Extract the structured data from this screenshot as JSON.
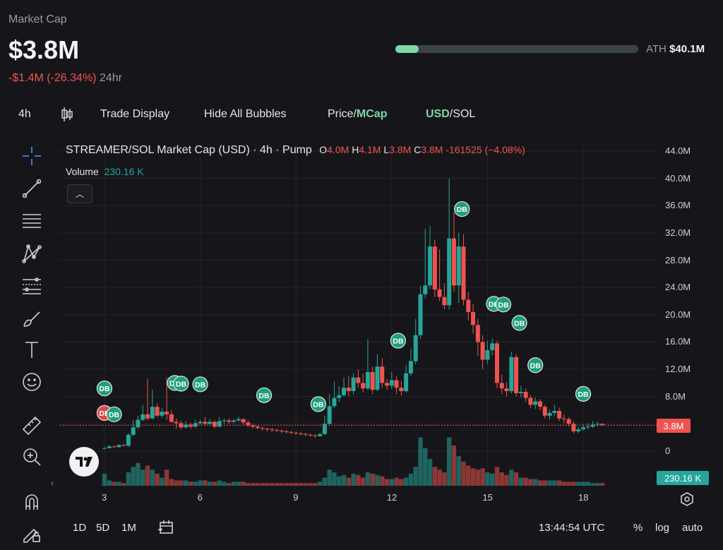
{
  "header": {
    "label": "Market Cap",
    "value": "$3.8M",
    "change": "-$1.4M (-26.34%)",
    "period": "24hr",
    "ath_label": "ATH",
    "ath_value": "$40.1M",
    "ath_progress": 0.095
  },
  "toolbar": {
    "interval": "4h",
    "trade_display": "Trade Display",
    "hide_bubbles": "Hide All Bubbles",
    "price_label": "Price",
    "mcap_label": "MCap",
    "usd_label": "USD",
    "sol_label": "SOL",
    "slash": "/"
  },
  "legend": {
    "title": "STREAMER/SOL Market Cap (USD) · 4h · Pump",
    "o_label": "O",
    "o_value": "4.0M",
    "h_label": "H",
    "h_value": "4.1M",
    "l_label": "L",
    "l_value": "3.8M",
    "c_label": "C",
    "c_value": "3.8M",
    "change": "-161525 (−4.08%)",
    "volume_label": "Volume",
    "volume_value": "230.16 K"
  },
  "bottom": {
    "ranges": [
      "1D",
      "5D",
      "1M"
    ],
    "time": "13:44:54 UTC",
    "percent": "%",
    "log": "log",
    "auto": "auto"
  },
  "colors": {
    "up": "#26a69a",
    "down": "#ef5350",
    "background": "#16161a",
    "accent_green": "#7fd6a7"
  },
  "chart_data": {
    "type": "candlestick",
    "y_ticks": [
      "44.0M",
      "40.0M",
      "36.0M",
      "32.0M",
      "28.0M",
      "24.0M",
      "20.0M",
      "16.0M",
      "12.0M",
      "8.0M",
      "0"
    ],
    "x_ticks": [
      "3",
      "6",
      "9",
      "12",
      "15",
      "18"
    ],
    "ylim": [
      0,
      44000000
    ],
    "last_price_label": "3.8M",
    "volume_badge": "230.16 K",
    "marker_label": "DB",
    "markers": [
      {
        "day": 3.0,
        "y": 9.2,
        "color": "up"
      },
      {
        "day": 3.0,
        "y": 5.6,
        "color": "down"
      },
      {
        "day": 3.3,
        "y": 5.4,
        "color": "up"
      },
      {
        "day": 5.2,
        "y": 10.0,
        "color": "up"
      },
      {
        "day": 5.4,
        "y": 9.9,
        "color": "up"
      },
      {
        "day": 6.0,
        "y": 9.8,
        "color": "up"
      },
      {
        "day": 8.0,
        "y": 8.2,
        "color": "up"
      },
      {
        "day": 9.7,
        "y": 6.9,
        "color": "up"
      },
      {
        "day": 12.2,
        "y": 16.2,
        "color": "up"
      },
      {
        "day": 14.2,
        "y": 35.5,
        "color": "up"
      },
      {
        "day": 15.2,
        "y": 21.6,
        "color": "up"
      },
      {
        "day": 15.5,
        "y": 21.5,
        "color": "up"
      },
      {
        "day": 16.0,
        "y": 18.8,
        "color": "up"
      },
      {
        "day": 16.5,
        "y": 12.6,
        "color": "up"
      },
      {
        "day": 18.0,
        "y": 8.4,
        "color": "up"
      }
    ],
    "candles": [
      [
        3.0,
        0.4,
        0.45,
        0.6,
        0.3,
        9
      ],
      [
        3.15,
        0.45,
        0.7,
        0.9,
        0.4,
        4
      ],
      [
        3.3,
        0.7,
        0.6,
        0.8,
        0.5,
        3
      ],
      [
        3.45,
        0.6,
        0.9,
        1.0,
        0.5,
        3
      ],
      [
        3.6,
        0.9,
        0.8,
        1.1,
        0.7,
        2
      ],
      [
        3.75,
        0.8,
        2.4,
        2.6,
        0.6,
        10
      ],
      [
        3.9,
        2.4,
        3.5,
        4.6,
        2.2,
        14
      ],
      [
        4.05,
        3.5,
        4.6,
        5.2,
        3.3,
        17
      ],
      [
        4.2,
        4.6,
        5.4,
        6.8,
        4.4,
        12
      ],
      [
        4.35,
        5.4,
        4.8,
        10.6,
        4.5,
        15
      ],
      [
        4.5,
        4.8,
        6.5,
        9.0,
        4.7,
        12
      ],
      [
        4.65,
        6.5,
        5.2,
        7.0,
        5.0,
        9
      ],
      [
        4.8,
        5.2,
        5.8,
        6.3,
        4.9,
        6
      ],
      [
        4.95,
        5.8,
        5.4,
        10.8,
        4.6,
        12
      ],
      [
        5.1,
        5.4,
        4.3,
        6.0,
        4.2,
        5
      ],
      [
        5.25,
        4.3,
        4.1,
        4.8,
        3.3,
        4
      ],
      [
        5.4,
        4.1,
        3.5,
        4.5,
        3.2,
        4
      ],
      [
        5.55,
        3.5,
        3.9,
        4.4,
        3.3,
        4
      ],
      [
        5.7,
        3.9,
        3.6,
        4.2,
        3.3,
        3
      ],
      [
        5.85,
        3.6,
        4.1,
        4.6,
        3.4,
        3
      ],
      [
        6.0,
        4.1,
        4.3,
        4.6,
        3.9,
        4
      ],
      [
        6.15,
        4.3,
        4.0,
        5.0,
        3.8,
        4
      ],
      [
        6.3,
        4.0,
        4.3,
        4.7,
        3.9,
        3
      ],
      [
        6.45,
        4.3,
        3.6,
        4.5,
        3.4,
        3
      ],
      [
        6.6,
        3.6,
        4.4,
        5.0,
        3.5,
        4
      ],
      [
        6.75,
        4.4,
        4.5,
        4.8,
        4.0,
        3
      ],
      [
        6.9,
        4.5,
        4.3,
        4.8,
        4.0,
        2
      ],
      [
        7.05,
        4.3,
        4.5,
        4.7,
        4.1,
        3
      ],
      [
        7.2,
        4.5,
        4.7,
        5.0,
        4.3,
        3
      ],
      [
        7.35,
        4.7,
        4.2,
        4.8,
        3.9,
        3
      ],
      [
        7.5,
        4.2,
        3.8,
        4.5,
        3.5,
        2
      ],
      [
        7.65,
        3.8,
        3.6,
        4.0,
        3.3,
        2
      ],
      [
        7.8,
        3.6,
        3.4,
        3.8,
        3.2,
        2
      ],
      [
        7.95,
        3.4,
        3.3,
        3.6,
        3.0,
        2
      ],
      [
        8.1,
        3.3,
        3.2,
        3.4,
        2.9,
        2
      ],
      [
        8.25,
        3.2,
        3.1,
        3.4,
        2.8,
        2
      ],
      [
        8.4,
        3.1,
        3.0,
        3.3,
        2.8,
        2
      ],
      [
        8.55,
        3.0,
        2.9,
        3.2,
        2.7,
        2
      ],
      [
        8.7,
        2.9,
        2.8,
        3.1,
        2.6,
        2
      ],
      [
        8.85,
        2.8,
        2.7,
        3.0,
        2.5,
        2
      ],
      [
        9.0,
        2.7,
        2.6,
        2.9,
        2.4,
        2
      ],
      [
        9.15,
        2.6,
        2.5,
        2.8,
        2.3,
        2
      ],
      [
        9.3,
        2.5,
        2.4,
        2.7,
        2.2,
        2
      ],
      [
        9.45,
        2.4,
        2.3,
        2.6,
        2.1,
        2
      ],
      [
        9.6,
        2.3,
        2.2,
        2.5,
        2.0,
        2
      ],
      [
        9.75,
        2.2,
        2.5,
        2.7,
        2.1,
        3
      ],
      [
        9.9,
        2.5,
        4.0,
        5.2,
        2.4,
        6
      ],
      [
        10.05,
        4.0,
        6.6,
        8.4,
        3.9,
        12
      ],
      [
        10.2,
        6.6,
        7.8,
        10.2,
        6.3,
        10
      ],
      [
        10.35,
        7.8,
        8.2,
        9.5,
        7.2,
        7
      ],
      [
        10.5,
        8.2,
        9.3,
        10.8,
        8.0,
        8
      ],
      [
        10.65,
        9.3,
        8.8,
        11.0,
        8.0,
        6
      ],
      [
        10.8,
        8.8,
        10.8,
        11.4,
        8.3,
        9
      ],
      [
        10.95,
        10.8,
        10.0,
        12.0,
        9.3,
        8
      ],
      [
        11.1,
        10.0,
        9.2,
        11.4,
        8.6,
        6
      ],
      [
        11.25,
        9.2,
        11.6,
        16.4,
        8.9,
        10
      ],
      [
        11.4,
        11.6,
        9.0,
        12.4,
        8.4,
        9
      ],
      [
        11.55,
        9.0,
        12.4,
        14.2,
        8.8,
        8
      ],
      [
        11.7,
        12.4,
        10.0,
        13.6,
        9.3,
        7
      ],
      [
        11.85,
        10.0,
        9.6,
        10.6,
        9.0,
        5
      ],
      [
        12.0,
        9.6,
        10.4,
        11.6,
        9.1,
        5
      ],
      [
        12.15,
        10.4,
        9.3,
        11.0,
        8.4,
        6
      ],
      [
        12.3,
        9.3,
        8.8,
        10.3,
        8.2,
        5
      ],
      [
        12.45,
        8.8,
        11.4,
        12.6,
        8.6,
        6
      ],
      [
        12.6,
        11.4,
        13.2,
        15.0,
        11.0,
        9
      ],
      [
        12.75,
        13.2,
        17.0,
        19.4,
        12.8,
        14
      ],
      [
        12.9,
        17.0,
        23.0,
        24.2,
        16.5,
        36
      ],
      [
        13.05,
        23.0,
        24.3,
        32.6,
        22.4,
        28
      ],
      [
        13.2,
        24.3,
        30.0,
        33.0,
        23.8,
        20
      ],
      [
        13.35,
        30.0,
        23.7,
        31.0,
        22.6,
        14
      ],
      [
        13.5,
        23.7,
        22.6,
        29.6,
        22.0,
        12
      ],
      [
        13.65,
        22.6,
        21.4,
        24.6,
        20.8,
        10
      ],
      [
        13.8,
        21.4,
        31.2,
        40.0,
        20.8,
        36
      ],
      [
        13.95,
        31.2,
        24.3,
        35.0,
        23.4,
        30
      ],
      [
        14.1,
        24.3,
        30.0,
        32.0,
        21.8,
        22
      ],
      [
        14.25,
        30.0,
        22.2,
        31.8,
        21.4,
        18
      ],
      [
        14.4,
        22.2,
        20.4,
        23.3,
        19.2,
        15
      ],
      [
        14.55,
        20.4,
        18.5,
        21.6,
        17.2,
        13
      ],
      [
        14.7,
        18.5,
        16.0,
        19.4,
        14.0,
        12
      ],
      [
        14.85,
        16.0,
        13.4,
        17.0,
        12.0,
        13
      ],
      [
        15.0,
        13.4,
        14.8,
        16.2,
        12.8,
        10
      ],
      [
        15.15,
        14.8,
        15.8,
        16.5,
        14.0,
        9
      ],
      [
        15.3,
        15.8,
        10.0,
        16.2,
        9.2,
        14
      ],
      [
        15.45,
        10.0,
        9.2,
        11.2,
        8.4,
        10
      ],
      [
        15.6,
        9.2,
        8.8,
        10.1,
        8.0,
        8
      ],
      [
        15.75,
        8.8,
        13.8,
        14.6,
        8.4,
        12
      ],
      [
        15.9,
        13.8,
        8.5,
        14.2,
        8.0,
        10
      ],
      [
        16.05,
        8.5,
        8.7,
        9.6,
        7.9,
        6
      ],
      [
        16.2,
        8.7,
        7.8,
        9.2,
        7.2,
        6
      ],
      [
        16.35,
        7.8,
        6.8,
        8.2,
        6.3,
        5
      ],
      [
        16.5,
        6.8,
        7.3,
        7.9,
        6.2,
        5
      ],
      [
        16.65,
        7.3,
        6.5,
        7.6,
        6.0,
        4
      ],
      [
        16.8,
        6.5,
        5.2,
        6.8,
        4.8,
        4
      ],
      [
        16.95,
        5.2,
        5.6,
        6.1,
        4.6,
        4
      ],
      [
        17.1,
        5.6,
        5.9,
        6.8,
        5.1,
        4
      ],
      [
        17.25,
        5.9,
        4.8,
        6.4,
        4.4,
        4
      ],
      [
        17.4,
        4.8,
        4.7,
        5.4,
        4.1,
        3
      ],
      [
        17.55,
        4.7,
        4.0,
        5.0,
        3.6,
        3
      ],
      [
        17.7,
        4.0,
        2.9,
        4.4,
        2.6,
        3
      ],
      [
        17.85,
        2.9,
        3.2,
        3.6,
        2.6,
        3
      ],
      [
        18.0,
        3.2,
        3.5,
        4.0,
        3.0,
        3
      ],
      [
        18.15,
        3.5,
        3.6,
        4.1,
        3.2,
        3
      ],
      [
        18.3,
        3.6,
        3.9,
        4.4,
        3.4,
        2
      ],
      [
        18.45,
        3.9,
        4.0,
        4.3,
        3.6,
        2
      ],
      [
        18.6,
        4.0,
        3.8,
        4.1,
        3.8,
        2
      ]
    ]
  }
}
